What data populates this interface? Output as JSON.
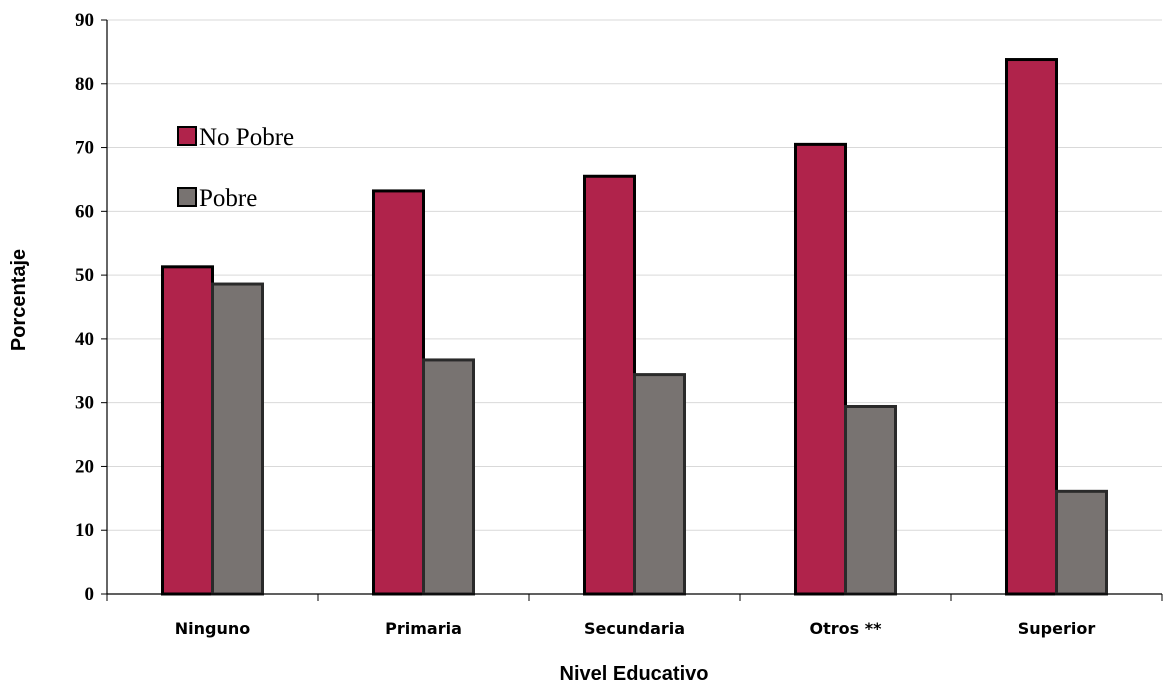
{
  "chart_data": {
    "type": "bar",
    "categories": [
      "Ninguno",
      "Primaria",
      "Secundaria",
      "Otros **",
      "Superior"
    ],
    "series": [
      {
        "name": "No Pobre",
        "color": "#B0234B",
        "values": [
          51.3,
          63.2,
          65.5,
          70.5,
          83.8
        ]
      },
      {
        "name": "Pobre",
        "color": "#787371",
        "values": [
          48.6,
          36.7,
          34.4,
          29.4,
          16.1
        ]
      }
    ],
    "title": "",
    "xlabel": "Nivel Educativo",
    "ylabel": "Porcentaje",
    "ylim": [
      0,
      90
    ],
    "yticks": [
      "0",
      "10",
      "20",
      "30",
      "40",
      "50",
      "60",
      "70",
      "80",
      "90"
    ],
    "grid": true,
    "legend_position": "top-left"
  }
}
